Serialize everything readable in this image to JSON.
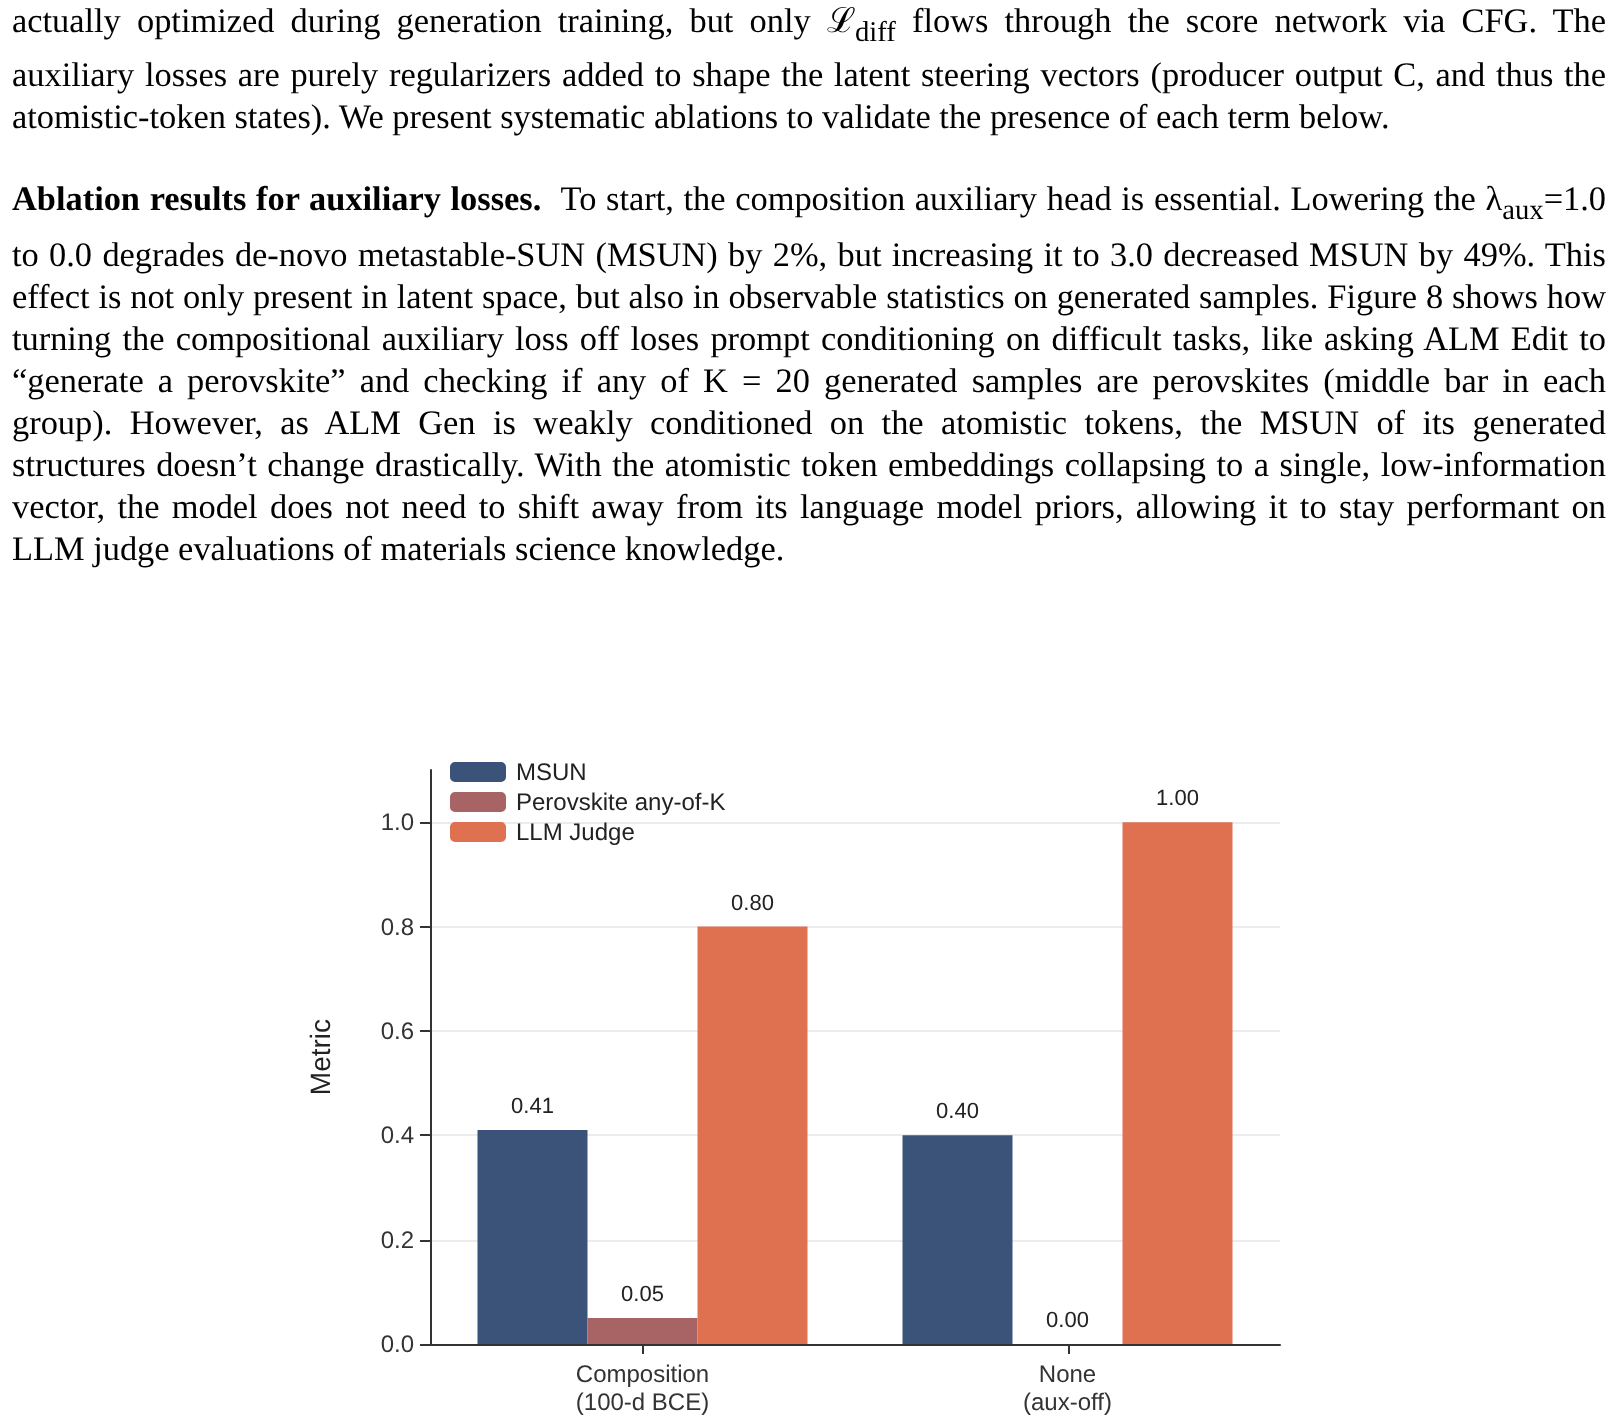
{
  "chart_data": {
    "type": "bar",
    "annotations": [
      "actually optimized during generation training, but only ℒ$_{diff}$ flows through the score network via CFG. The auxiliary losses are purely regularizers added to shape the latent steering vectors (producer output C, and thus the atomistic-token states). We present systematic ablations to validate the presence of each term below.",
      "Ablation results for auxiliary losses.",
      "To start, the composition auxiliary head is essential. Lowering the λ$_{aux}$=1.0 to 0.0 degrades de-novo metastable-SUN (MSUN) by 2%, but increasing it to 3.0 decreased MSUN by 49%. This effect is not only present in latent space, but also in observable statistics on generated samples. Figure 8 shows how turning the compositional auxiliary loss off loses prompt conditioning on difficult tasks, like asking ALM Edit to “generate a perovskite” and checking if any of K = 20 generated samples are perovskites (middle bar in each group). However, as ALM Gen is weakly conditioned on the atomistic tokens, the MSUN of its generated structures doesn’t change drastically. With the atomistic token embeddings collapsing to a single, low-information vector, the model does not need to shift away from its language model priors, allowing it to stay performant on LLM judge evaluations of materials science knowledge."
    ],
    "categories": [
      "Composition\n(100-d BCE)",
      "None\n(aux-off)"
    ],
    "series": [
      {
        "name": "MSUN",
        "color": "#3b5378",
        "values": [
          0.41,
          0.4
        ],
        "value_labels": [
          "0.41",
          "0.40"
        ]
      },
      {
        "name": "Perovskite any-of-K",
        "color": "#a86464",
        "values": [
          0.05,
          0.0
        ],
        "value_labels": [
          "0.05",
          "0.00"
        ]
      },
      {
        "name": "LLM Judge",
        "color": "#e07150",
        "values": [
          0.8,
          1.0
        ],
        "value_labels": [
          "0.80",
          "1.00"
        ]
      }
    ],
    "ylabel": "Metric",
    "ylim": [
      0,
      1.1
    ],
    "yticks": [
      {
        "value": 0,
        "label": "0.0"
      },
      {
        "value": 0.2,
        "label": "0.2"
      },
      {
        "value": 0.4,
        "label": "0.4"
      },
      {
        "value": 0.6,
        "label": "0.6"
      },
      {
        "value": 0.8,
        "label": "0.8"
      },
      {
        "value": 1.0,
        "label": "1.0"
      }
    ],
    "grid": "y",
    "legend": "top left"
  }
}
